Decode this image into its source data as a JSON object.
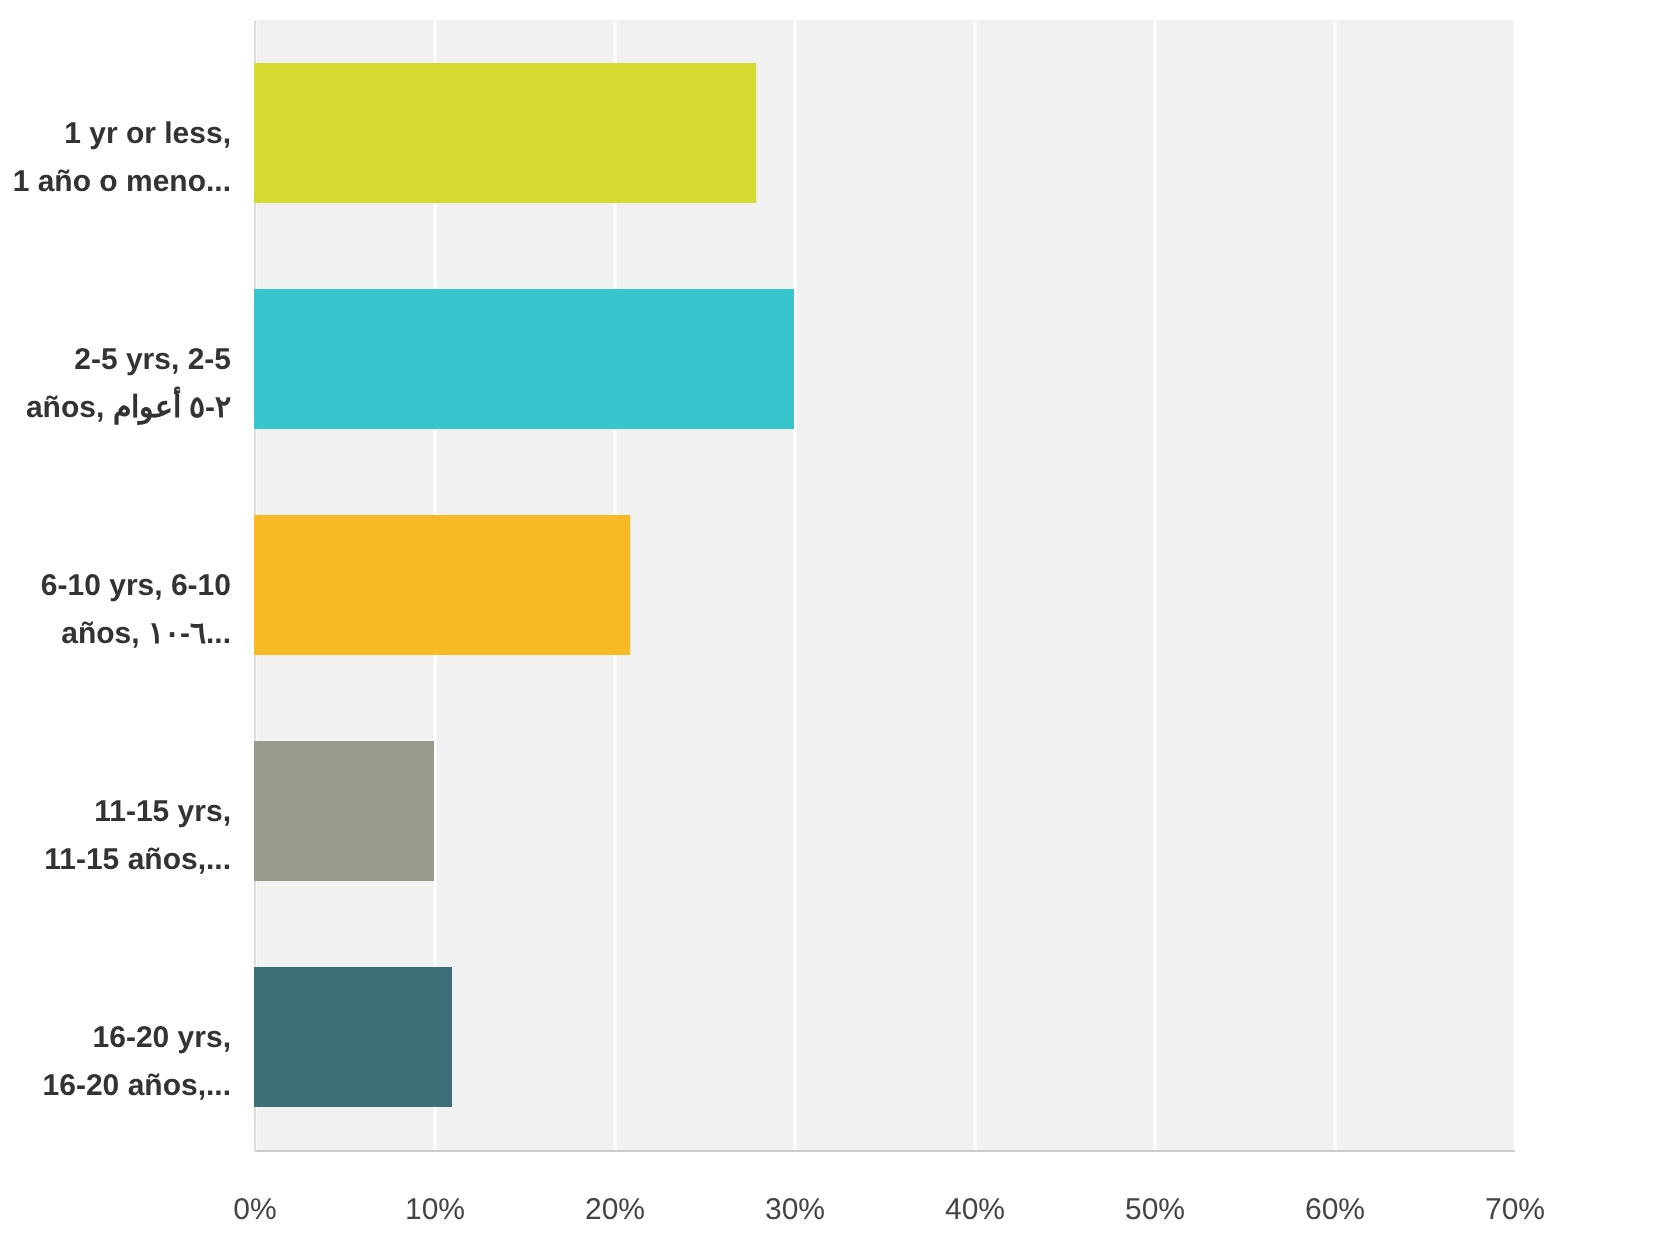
{
  "chart_data": {
    "type": "bar",
    "orientation": "horizontal",
    "categories": [
      "1 yr or less,\n1 año o meno...",
      "2-5 yrs, 2-5\naños, ٢-٥ أعوام",
      "6-10 yrs, 6-10\naños, ٦-١٠...",
      "11-15 yrs,\n11-15 años,...",
      "16-20 yrs,\n16-20 años,..."
    ],
    "values": [
      27.9,
      30.0,
      20.9,
      10.0,
      11.0
    ],
    "colors": [
      "#d5da30",
      "#38c6cd",
      "#f7b924",
      "#9a9a8a",
      "#3b7079"
    ],
    "xlim": [
      0,
      70
    ],
    "xticks": [
      {
        "value": 0,
        "label": "0%"
      },
      {
        "value": 10,
        "label": "10%"
      },
      {
        "value": 20,
        "label": "20%"
      },
      {
        "value": 30,
        "label": "30%"
      },
      {
        "value": 40,
        "label": "40%"
      },
      {
        "value": 50,
        "label": "50%"
      },
      {
        "value": 60,
        "label": "60%"
      },
      {
        "value": 70,
        "label": "70%"
      }
    ],
    "grid": "x"
  }
}
